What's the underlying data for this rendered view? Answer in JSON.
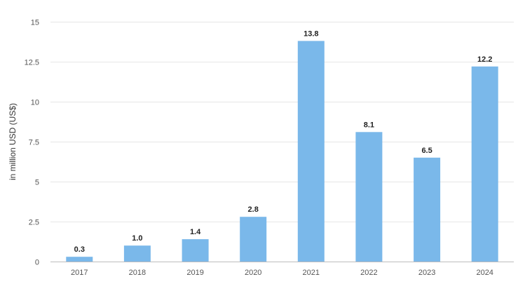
{
  "chart_data": {
    "type": "bar",
    "title": "",
    "xlabel": "",
    "ylabel": "in million USD (US$)",
    "categories": [
      "2017",
      "2018",
      "2019",
      "2020",
      "2021",
      "2022",
      "2023",
      "2024"
    ],
    "values": [
      0.3,
      1.0,
      1.4,
      2.8,
      13.8,
      8.1,
      6.5,
      12.2
    ],
    "value_labels": [
      "0.3",
      "1.0",
      "1.4",
      "2.8",
      "13.8",
      "8.1",
      "6.5",
      "12.2"
    ],
    "ylim": [
      0,
      15
    ],
    "yticks": [
      0,
      2.5,
      5,
      7.5,
      10,
      12.5,
      15
    ],
    "ytick_labels": [
      "0",
      "2.5",
      "5",
      "7.5",
      "10",
      "12.5",
      "15"
    ],
    "grid": true,
    "legend": "none",
    "bar_color": "#7ab8ea"
  }
}
